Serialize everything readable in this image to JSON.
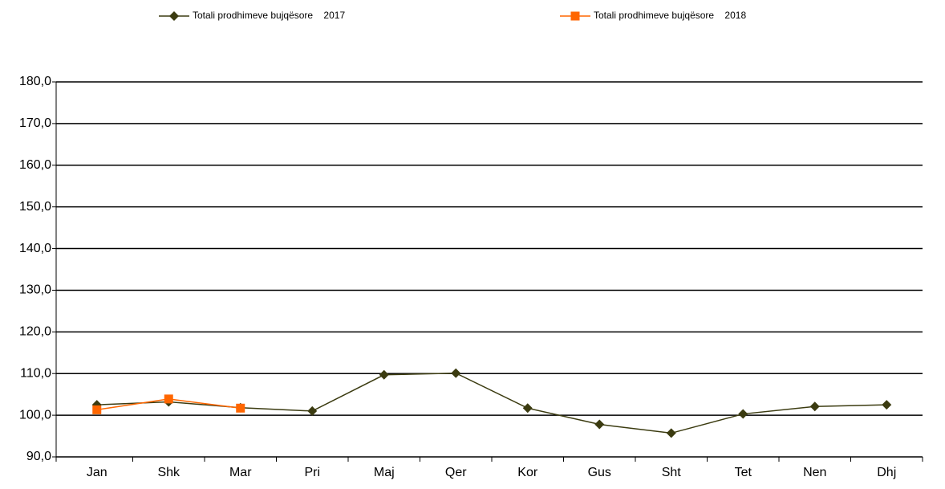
{
  "chart_data": {
    "type": "line",
    "categories": [
      "Jan",
      "Shk",
      "Mar",
      "Pri",
      "Maj",
      "Qer",
      "Kor",
      "Gus",
      "Sht",
      "Tet",
      "Nen",
      "Dhj"
    ],
    "series": [
      {
        "name": "Totali prodhimeve bujqësore    2017",
        "color": "#3b3b10",
        "marker": "diamond",
        "values": [
          102.5,
          103.2,
          101.8,
          101.0,
          109.7,
          110.1,
          101.7,
          97.8,
          95.7,
          100.3,
          102.1,
          102.5
        ]
      },
      {
        "name": "Totali prodhimeve bujqësore    2018",
        "color": "#ff6600",
        "marker": "square",
        "values": [
          101.3,
          103.9,
          101.7,
          null,
          null,
          null,
          null,
          null,
          null,
          null,
          null,
          null
        ]
      }
    ],
    "ylim": [
      90,
      180
    ],
    "yticks": [
      {
        "value": 90,
        "label": "90,0"
      },
      {
        "value": 100,
        "label": "100,0"
      },
      {
        "value": 110,
        "label": "110,0"
      },
      {
        "value": 120,
        "label": "120,0"
      },
      {
        "value": 130,
        "label": "130,0"
      },
      {
        "value": 140,
        "label": "140,0"
      },
      {
        "value": 150,
        "label": "150,0"
      },
      {
        "value": 160,
        "label": "160,0"
      },
      {
        "value": 170,
        "label": "170,0"
      },
      {
        "value": 180,
        "label": "180,0"
      }
    ],
    "grid": true,
    "legend": "top"
  }
}
